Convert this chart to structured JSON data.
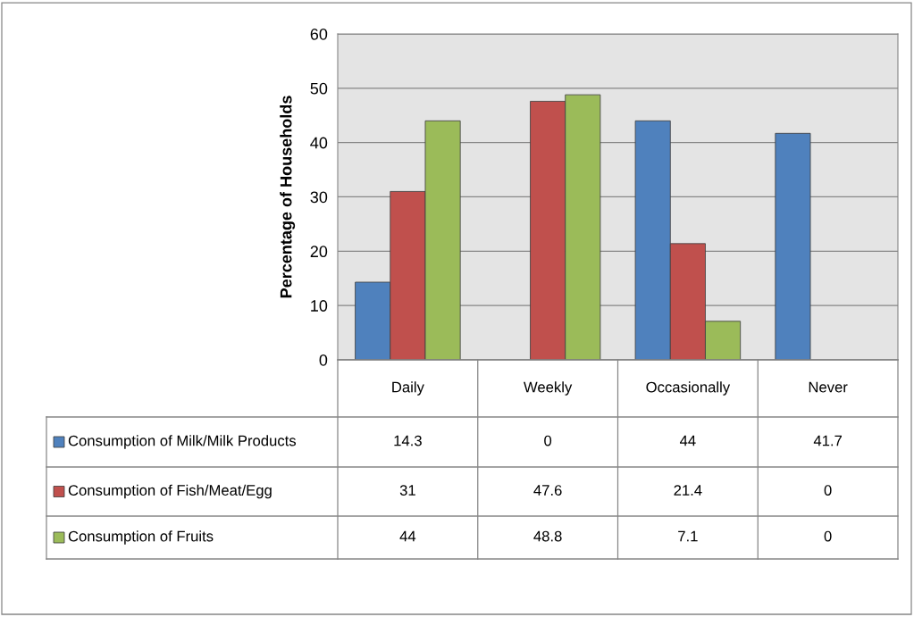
{
  "chart_data": {
    "type": "bar",
    "ylabel": "Percentage of Households",
    "categories": [
      "Daily",
      "Weekly",
      "Occasionally",
      "Never"
    ],
    "series": [
      {
        "name": "Consumption of Milk/Milk Products",
        "color": "#4f81bd",
        "values": [
          14.3,
          0,
          44,
          41.7
        ]
      },
      {
        "name": "Consumption of Fish/Meat/Egg",
        "color": "#c0504d",
        "values": [
          31,
          47.6,
          21.4,
          0
        ]
      },
      {
        "name": "Consumption of Fruits",
        "color": "#9bbb59",
        "values": [
          44,
          48.8,
          7.1,
          0
        ]
      }
    ],
    "ylim": [
      0,
      60
    ],
    "yticks": [
      0,
      10,
      20,
      30,
      40,
      50,
      60
    ],
    "grid": "y",
    "data_labels": true,
    "legend": "bottom"
  }
}
